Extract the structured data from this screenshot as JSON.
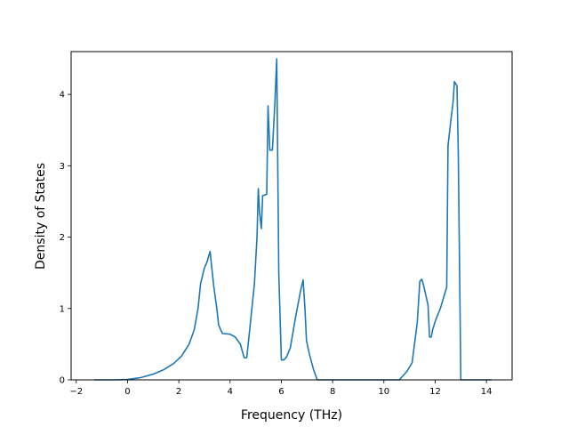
{
  "chart_data": {
    "type": "line",
    "title": "",
    "xlabel": "Frequency (THz)",
    "ylabel": "Density of States",
    "xlim": [
      -2.2,
      15.0
    ],
    "ylim": [
      0,
      4.6
    ],
    "x_ticks": [
      -2,
      0,
      2,
      4,
      6,
      8,
      10,
      12,
      14
    ],
    "x_tick_labels": [
      "−2",
      "0",
      "2",
      "4",
      "6",
      "8",
      "10",
      "12",
      "14"
    ],
    "y_ticks": [
      0,
      1,
      2,
      3,
      4
    ],
    "y_tick_labels": [
      "0",
      "1",
      "2",
      "3",
      "4"
    ],
    "grid": false,
    "legend": "none",
    "series": [
      {
        "color": "#1f77b4",
        "x": [
          -1.3,
          -0.5,
          0.0,
          0.5,
          1.0,
          1.4,
          1.8,
          2.1,
          2.4,
          2.6,
          2.75,
          2.85,
          3.0,
          3.1,
          3.22,
          3.35,
          3.5,
          3.55,
          3.7,
          4.0,
          4.2,
          4.4,
          4.55,
          4.65,
          4.75,
          4.95,
          5.05,
          5.1,
          5.15,
          5.22,
          5.27,
          5.43,
          5.48,
          5.55,
          5.65,
          5.75,
          5.82,
          5.9,
          6.0,
          6.1,
          6.2,
          6.35,
          6.55,
          6.75,
          6.85,
          6.92,
          6.98,
          7.1,
          7.25,
          7.4,
          7.5,
          8.0,
          9.0,
          10.0,
          10.6,
          10.9,
          11.1,
          11.3,
          11.4,
          11.48,
          11.55,
          11.72,
          11.78,
          11.85,
          11.9,
          12.0,
          12.2,
          12.45,
          12.5,
          12.6,
          12.7,
          12.75,
          12.85,
          12.9,
          13.0,
          13.5,
          14.0,
          14.2
        ],
        "y": [
          0,
          0,
          0.005,
          0.03,
          0.08,
          0.14,
          0.23,
          0.33,
          0.5,
          0.7,
          1.0,
          1.35,
          1.57,
          1.65,
          1.8,
          1.35,
          0.95,
          0.77,
          0.65,
          0.64,
          0.6,
          0.5,
          0.31,
          0.31,
          0.65,
          1.35,
          2.0,
          2.68,
          2.35,
          2.12,
          2.58,
          2.6,
          3.84,
          3.22,
          3.22,
          3.9,
          4.5,
          1.5,
          0.28,
          0.28,
          0.32,
          0.45,
          0.87,
          1.25,
          1.4,
          1.0,
          0.55,
          0.35,
          0.15,
          0.0,
          0.0,
          0.0,
          0.0,
          0.0,
          0.0,
          0.12,
          0.24,
          0.8,
          1.38,
          1.41,
          1.32,
          1.05,
          0.6,
          0.6,
          0.7,
          0.82,
          1.0,
          1.3,
          3.28,
          3.6,
          3.9,
          4.18,
          4.12,
          3.2,
          0.0,
          0.0,
          0.0,
          0.0
        ]
      }
    ]
  }
}
